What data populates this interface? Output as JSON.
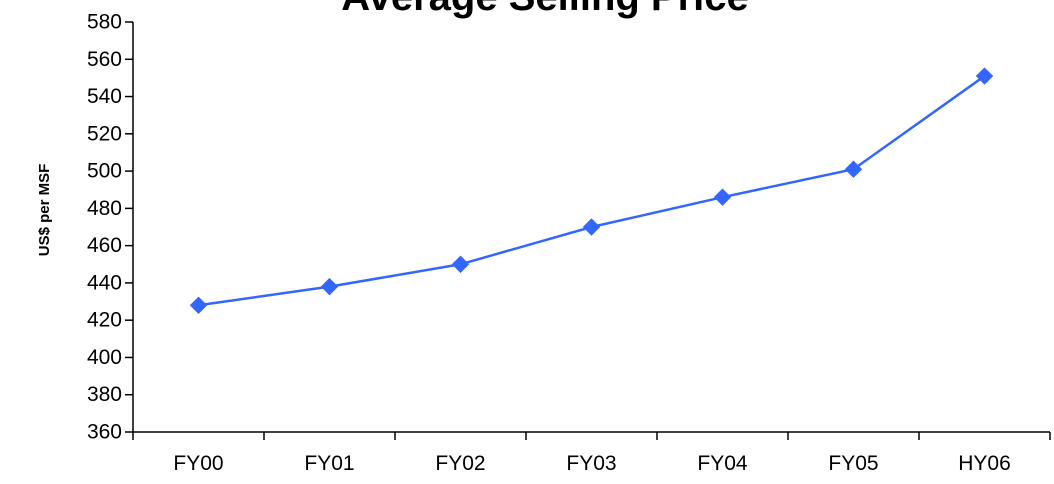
{
  "chart_data": {
    "type": "line",
    "title": "Average Selling Price",
    "xlabel": "",
    "ylabel": "US$ per MSF",
    "categories": [
      "FY00",
      "FY01",
      "FY02",
      "FY03",
      "FY04",
      "FY05",
      "HY06"
    ],
    "series": [
      {
        "values": [
          428,
          438,
          450,
          470,
          486,
          501,
          551
        ],
        "color": "#3366ff",
        "marker": "diamond"
      }
    ],
    "ylim": [
      360,
      580
    ],
    "yticks": [
      360,
      380,
      400,
      420,
      440,
      460,
      480,
      500,
      520,
      540,
      560,
      580
    ],
    "grid": false,
    "legend": "none"
  }
}
